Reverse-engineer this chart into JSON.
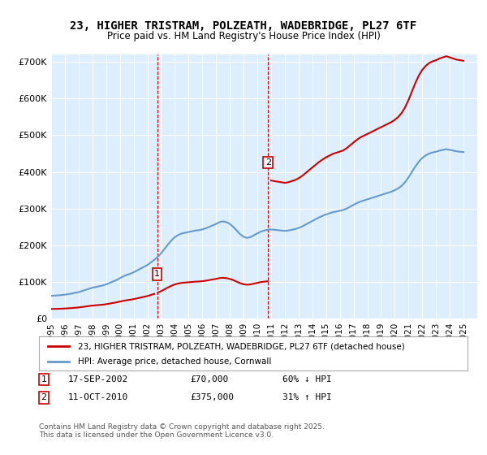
{
  "title": "23, HIGHER TRISTRAM, POLZEATH, WADEBRIDGE, PL27 6TF",
  "subtitle": "Price paid vs. HM Land Registry's House Price Index (HPI)",
  "title_fontsize": 11,
  "subtitle_fontsize": 9,
  "ylabel_vals": [
    0,
    100000,
    200000,
    300000,
    400000,
    500000,
    600000,
    700000
  ],
  "ylabel_labels": [
    "£0",
    "£100K",
    "£200K",
    "£300K",
    "£400K",
    "£500K",
    "£600K",
    "£700K"
  ],
  "xmin": 1995.0,
  "xmax": 2026.0,
  "ymin": 0,
  "ymax": 720000,
  "purchase1_date": 2002.72,
  "purchase1_price": 70000,
  "purchase1_label": "1",
  "purchase2_date": 2010.78,
  "purchase2_price": 375000,
  "purchase2_label": "2",
  "legend_line1": "23, HIGHER TRISTRAM, POLZEATH, WADEBRIDGE, PL27 6TF (detached house)",
  "legend_line2": "HPI: Average price, detached house, Cornwall",
  "line_color_red": "#cc0000",
  "line_color_blue": "#6699cc",
  "bg_color": "#ddeeff",
  "annotation1": "1    17-SEP-2002          £70,000          60% ↓ HPI",
  "annotation2": "2    11-OCT-2010          £375,000        31% ↑ HPI",
  "footer": "Contains HM Land Registry data © Crown copyright and database right 2025.\nThis data is licensed under the Open Government Licence v3.0.",
  "hpi_years": [
    1995,
    1995.25,
    1995.5,
    1995.75,
    1996,
    1996.25,
    1996.5,
    1996.75,
    1997,
    1997.25,
    1997.5,
    1997.75,
    1998,
    1998.25,
    1998.5,
    1998.75,
    1999,
    1999.25,
    1999.5,
    1999.75,
    2000,
    2000.25,
    2000.5,
    2000.75,
    2001,
    2001.25,
    2001.5,
    2001.75,
    2002,
    2002.25,
    2002.5,
    2002.75,
    2003,
    2003.25,
    2003.5,
    2003.75,
    2004,
    2004.25,
    2004.5,
    2004.75,
    2005,
    2005.25,
    2005.5,
    2005.75,
    2006,
    2006.25,
    2006.5,
    2006.75,
    2007,
    2007.25,
    2007.5,
    2007.75,
    2008,
    2008.25,
    2008.5,
    2008.75,
    2009,
    2009.25,
    2009.5,
    2009.75,
    2010,
    2010.25,
    2010.5,
    2010.75,
    2011,
    2011.25,
    2011.5,
    2011.75,
    2012,
    2012.25,
    2012.5,
    2012.75,
    2013,
    2013.25,
    2013.5,
    2013.75,
    2014,
    2014.25,
    2014.5,
    2014.75,
    2015,
    2015.25,
    2015.5,
    2015.75,
    2016,
    2016.25,
    2016.5,
    2016.75,
    2017,
    2017.25,
    2017.5,
    2017.75,
    2018,
    2018.25,
    2018.5,
    2018.75,
    2019,
    2019.25,
    2019.5,
    2019.75,
    2020,
    2020.25,
    2020.5,
    2020.75,
    2021,
    2021.25,
    2021.5,
    2021.75,
    2022,
    2022.25,
    2022.5,
    2022.75,
    2023,
    2023.25,
    2023.5,
    2023.75,
    2024,
    2024.25,
    2024.5,
    2024.75,
    2025
  ],
  "hpi_values": [
    62000,
    62500,
    63000,
    64000,
    65000,
    66500,
    68000,
    70000,
    72000,
    75000,
    78000,
    81000,
    84000,
    86000,
    88000,
    90000,
    93000,
    97000,
    101000,
    105000,
    110000,
    115000,
    119000,
    122000,
    126000,
    131000,
    136000,
    141000,
    146000,
    153000,
    160000,
    168000,
    178000,
    190000,
    202000,
    213000,
    222000,
    228000,
    232000,
    234000,
    236000,
    238000,
    240000,
    241000,
    243000,
    246000,
    250000,
    254000,
    258000,
    263000,
    265000,
    263000,
    258000,
    250000,
    240000,
    230000,
    223000,
    220000,
    222000,
    227000,
    232000,
    237000,
    240000,
    242000,
    243000,
    242000,
    241000,
    240000,
    239000,
    240000,
    242000,
    244000,
    247000,
    251000,
    256000,
    261000,
    266000,
    271000,
    276000,
    280000,
    284000,
    287000,
    290000,
    292000,
    294000,
    296000,
    300000,
    305000,
    310000,
    315000,
    319000,
    322000,
    325000,
    328000,
    331000,
    334000,
    337000,
    340000,
    343000,
    346000,
    350000,
    355000,
    362000,
    372000,
    385000,
    400000,
    415000,
    428000,
    438000,
    445000,
    450000,
    453000,
    455000,
    458000,
    460000,
    462000,
    460000,
    458000,
    456000,
    455000,
    454000
  ],
  "xticks": [
    1995,
    1996,
    1997,
    1998,
    1999,
    2000,
    2001,
    2002,
    2003,
    2004,
    2005,
    2006,
    2007,
    2008,
    2009,
    2010,
    2011,
    2012,
    2013,
    2014,
    2015,
    2016,
    2017,
    2018,
    2019,
    2020,
    2021,
    2022,
    2023,
    2024,
    2025
  ]
}
